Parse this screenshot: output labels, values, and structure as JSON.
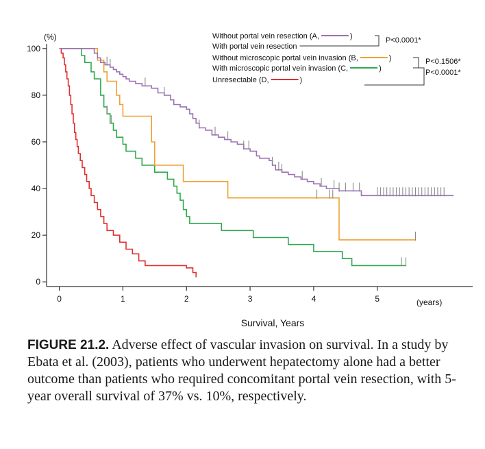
{
  "chart_data": {
    "type": "line",
    "subtype": "kaplan-meier",
    "xlabel": "Survival, Years",
    "x_unit_label": "(years)",
    "y_unit_label": "(%)",
    "xlim": [
      -0.2,
      6.5
    ],
    "ylim": [
      -2,
      102
    ],
    "x_ticks": [
      0,
      1,
      2,
      3,
      4,
      5
    ],
    "y_ticks": [
      0,
      20,
      40,
      60,
      80,
      100
    ],
    "colors": {
      "A": "#9b72b5",
      "B": "#f0a033",
      "C": "#2daa4e",
      "D": "#e03030",
      "axis": "#333333",
      "bracket": "#333333"
    },
    "legend": [
      {
        "key": "A",
        "text_before": "Without portal vein resection (A,",
        "text_after": ")"
      },
      {
        "key": "",
        "text_before": "With portal vein resection",
        "text_after": ""
      },
      {
        "key": "B",
        "text_before": "Without microscopic portal vein invasion (B,",
        "text_after": ")"
      },
      {
        "key": "C",
        "text_before": "With microscopic portal vein invasion (C,",
        "text_after": ")"
      },
      {
        "key": "D",
        "text_before": "Unresectable (D,",
        "text_after": ")"
      }
    ],
    "p_values": [
      "P<0.0001*",
      "P<0.1506*",
      "P<0.0001*"
    ],
    "series": [
      {
        "name": "A",
        "label": "Without portal vein resection",
        "points": [
          [
            0,
            100
          ],
          [
            0.5,
            100
          ],
          [
            0.55,
            98
          ],
          [
            0.6,
            96
          ],
          [
            0.65,
            94
          ],
          [
            0.72,
            93
          ],
          [
            0.8,
            92
          ],
          [
            0.85,
            91
          ],
          [
            0.9,
            90
          ],
          [
            0.95,
            89
          ],
          [
            1.0,
            88
          ],
          [
            1.05,
            87
          ],
          [
            1.1,
            86
          ],
          [
            1.2,
            85
          ],
          [
            1.3,
            84
          ],
          [
            1.45,
            83
          ],
          [
            1.55,
            81
          ],
          [
            1.65,
            80
          ],
          [
            1.75,
            78
          ],
          [
            1.8,
            76
          ],
          [
            1.9,
            75
          ],
          [
            2.0,
            74
          ],
          [
            2.05,
            72
          ],
          [
            2.1,
            70
          ],
          [
            2.15,
            68
          ],
          [
            2.2,
            66
          ],
          [
            2.3,
            65
          ],
          [
            2.4,
            63
          ],
          [
            2.5,
            62
          ],
          [
            2.6,
            61
          ],
          [
            2.7,
            60
          ],
          [
            2.8,
            59
          ],
          [
            2.9,
            57
          ],
          [
            3.0,
            56
          ],
          [
            3.1,
            54
          ],
          [
            3.15,
            53
          ],
          [
            3.3,
            52
          ],
          [
            3.35,
            50
          ],
          [
            3.4,
            48
          ],
          [
            3.5,
            47
          ],
          [
            3.6,
            46
          ],
          [
            3.7,
            45
          ],
          [
            3.8,
            44
          ],
          [
            3.9,
            43
          ],
          [
            4.0,
            42
          ],
          [
            4.1,
            41
          ],
          [
            4.2,
            40
          ],
          [
            4.35,
            40
          ],
          [
            4.4,
            39
          ],
          [
            4.6,
            39
          ],
          [
            4.75,
            37
          ],
          [
            6.2,
            37
          ]
        ],
        "censor_x": [
          0.75,
          0.8,
          1.35,
          1.65,
          2.2,
          2.45,
          2.65,
          2.9,
          2.98,
          3.35,
          3.45,
          3.5,
          3.82,
          4.12,
          4.32,
          4.4,
          4.5,
          4.62,
          4.72,
          5.0,
          5.05,
          5.1,
          5.15,
          5.2,
          5.25,
          5.3,
          5.35,
          5.4,
          5.45,
          5.5,
          5.55,
          5.6,
          5.65,
          5.7,
          5.75,
          5.8,
          5.85,
          5.9,
          5.95,
          6.0,
          6.05
        ]
      },
      {
        "name": "B",
        "label": "Without microscopic portal vein invasion",
        "points": [
          [
            0,
            100
          ],
          [
            0.25,
            100
          ],
          [
            0.55,
            100
          ],
          [
            0.6,
            95
          ],
          [
            0.7,
            90
          ],
          [
            0.75,
            86
          ],
          [
            0.85,
            86
          ],
          [
            0.9,
            80
          ],
          [
            0.95,
            76
          ],
          [
            1.0,
            71
          ],
          [
            1.4,
            71
          ],
          [
            1.45,
            60
          ],
          [
            1.5,
            50
          ],
          [
            1.9,
            50
          ],
          [
            1.95,
            43
          ],
          [
            2.6,
            43
          ],
          [
            2.65,
            36
          ],
          [
            4.35,
            36
          ],
          [
            4.4,
            18
          ],
          [
            5.6,
            18
          ]
        ],
        "censor_x": [
          4.05,
          4.25,
          4.3,
          5.6
        ]
      },
      {
        "name": "C",
        "label": "With microscopic portal vein invasion",
        "points": [
          [
            0,
            100
          ],
          [
            0.3,
            100
          ],
          [
            0.35,
            97
          ],
          [
            0.4,
            94
          ],
          [
            0.5,
            90
          ],
          [
            0.55,
            87
          ],
          [
            0.65,
            80
          ],
          [
            0.7,
            75
          ],
          [
            0.75,
            72
          ],
          [
            0.8,
            68
          ],
          [
            0.85,
            65
          ],
          [
            0.9,
            62
          ],
          [
            1.0,
            59
          ],
          [
            1.05,
            56
          ],
          [
            1.2,
            53
          ],
          [
            1.3,
            50
          ],
          [
            1.5,
            47
          ],
          [
            1.7,
            44
          ],
          [
            1.8,
            41
          ],
          [
            1.85,
            38
          ],
          [
            1.9,
            35
          ],
          [
            1.95,
            31
          ],
          [
            2.0,
            28
          ],
          [
            2.05,
            25
          ],
          [
            2.5,
            25
          ],
          [
            2.55,
            22
          ],
          [
            3.0,
            22
          ],
          [
            3.05,
            19
          ],
          [
            3.5,
            19
          ],
          [
            3.6,
            16
          ],
          [
            3.9,
            16
          ],
          [
            4.0,
            13
          ],
          [
            4.4,
            13
          ],
          [
            4.45,
            10
          ],
          [
            4.55,
            10
          ],
          [
            4.6,
            7
          ],
          [
            5.45,
            7
          ]
        ],
        "censor_x": [
          0.75,
          0.82,
          5.38,
          5.45
        ]
      },
      {
        "name": "D",
        "label": "Unresectable",
        "points": [
          [
            0,
            100
          ],
          [
            0.03,
            98
          ],
          [
            0.06,
            96
          ],
          [
            0.08,
            93
          ],
          [
            0.1,
            90
          ],
          [
            0.12,
            87
          ],
          [
            0.14,
            84
          ],
          [
            0.16,
            80
          ],
          [
            0.18,
            76
          ],
          [
            0.2,
            72
          ],
          [
            0.22,
            68
          ],
          [
            0.24,
            64
          ],
          [
            0.26,
            61
          ],
          [
            0.28,
            58
          ],
          [
            0.3,
            55
          ],
          [
            0.33,
            52
          ],
          [
            0.36,
            49
          ],
          [
            0.4,
            46
          ],
          [
            0.43,
            43
          ],
          [
            0.47,
            40
          ],
          [
            0.5,
            37
          ],
          [
            0.55,
            34
          ],
          [
            0.6,
            31
          ],
          [
            0.65,
            28
          ],
          [
            0.7,
            25
          ],
          [
            0.75,
            22
          ],
          [
            0.85,
            20
          ],
          [
            0.95,
            17
          ],
          [
            1.05,
            14
          ],
          [
            1.15,
            12
          ],
          [
            1.25,
            9
          ],
          [
            1.35,
            7
          ],
          [
            1.9,
            7
          ],
          [
            2.0,
            6
          ],
          [
            2.1,
            4
          ],
          [
            2.15,
            2
          ]
        ],
        "censor_x": []
      }
    ]
  },
  "caption": {
    "label": "FIGURE 21.2.",
    "text": "Adverse effect of vascular invasion on survival. In a study by Ebata et al. (2003), patients who underwent hepatectomy alone had a better outcome than patients who required concomitant portal vein resection, with 5-year overall survival of 37% vs. 10%, respectively."
  }
}
